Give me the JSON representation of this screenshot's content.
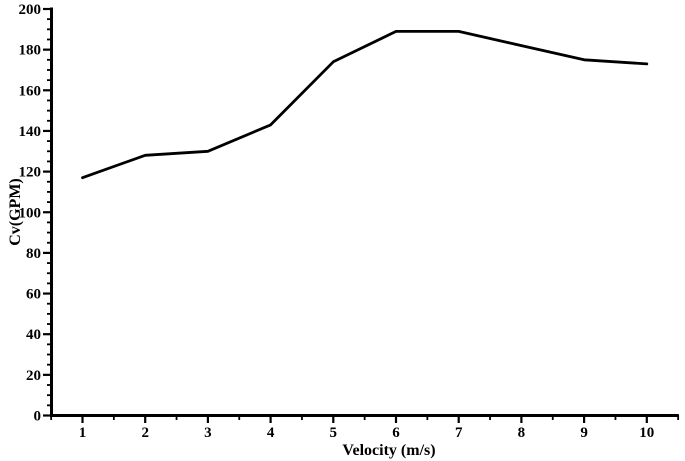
{
  "figure": {
    "background_color": "#ffffff",
    "line_color": "#000000",
    "axis_color": "#000000"
  },
  "chart_data": {
    "type": "line",
    "title": "",
    "xlabel": "Velocity (m/s)",
    "ylabel": "Cv(GPM)",
    "x": [
      1,
      2,
      3,
      4,
      5,
      6,
      7,
      8,
      9,
      10
    ],
    "series": [
      {
        "name": "Cv",
        "values": [
          117,
          128,
          130,
          143,
          174,
          189,
          189,
          182,
          175,
          173
        ]
      }
    ],
    "xlim": [
      0.5,
      10.5
    ],
    "ylim": [
      0,
      200
    ],
    "x_major_ticks": [
      1,
      2,
      3,
      4,
      5,
      6,
      7,
      8,
      9,
      10
    ],
    "x_tick_labels": [
      "1",
      "2",
      "3",
      "4",
      "5",
      "6",
      "7",
      "8",
      "9",
      "10"
    ],
    "y_major_ticks": [
      0,
      20,
      40,
      60,
      80,
      100,
      120,
      140,
      160,
      180,
      200
    ],
    "y_tick_labels": [
      "0",
      "20",
      "40",
      "60",
      "80",
      "100",
      "120",
      "140",
      "160",
      "180",
      "200"
    ],
    "x_minor_step": 0.5,
    "y_minor_step": 5,
    "grid": false,
    "legend": "none",
    "markers": "none"
  }
}
